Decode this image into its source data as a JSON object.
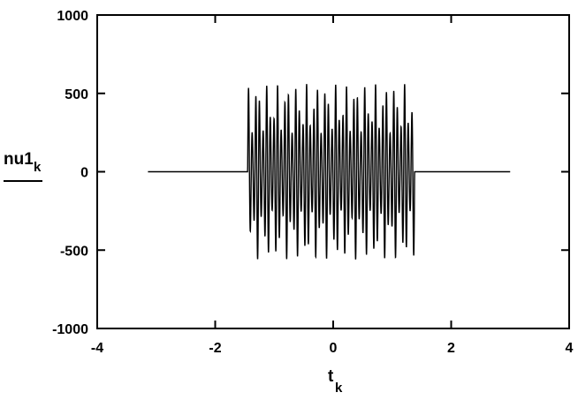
{
  "chart_data": {
    "type": "line",
    "title": "",
    "xlabel": {
      "base": "t",
      "subscript": "k"
    },
    "ylabel": {
      "base": "nu1",
      "subscript": "k"
    },
    "xlim": [
      -4,
      4
    ],
    "ylim": [
      -1000,
      1000
    ],
    "xticks": [
      -4,
      -2,
      0,
      2,
      4
    ],
    "yticks": [
      1000,
      500,
      0,
      -500,
      -1000
    ],
    "xtick_labels": [
      "-4",
      "-2",
      "0",
      "2",
      "4"
    ],
    "ytick_labels": [
      "1000",
      "500",
      "0",
      "-500",
      "-1000"
    ],
    "grid": false,
    "legend": "none",
    "series": [
      {
        "color": "#000000",
        "x_range": [
          -3.14,
          3.0
        ],
        "burst_range": [
          -1.45,
          1.38
        ],
        "baseline": 0,
        "amplitude_max": 560,
        "amplitude_min": -560,
        "inner_envelope": [
          -200,
          300
        ],
        "oscillation_cycles": 46,
        "modulation_cycles": 17
      }
    ]
  }
}
